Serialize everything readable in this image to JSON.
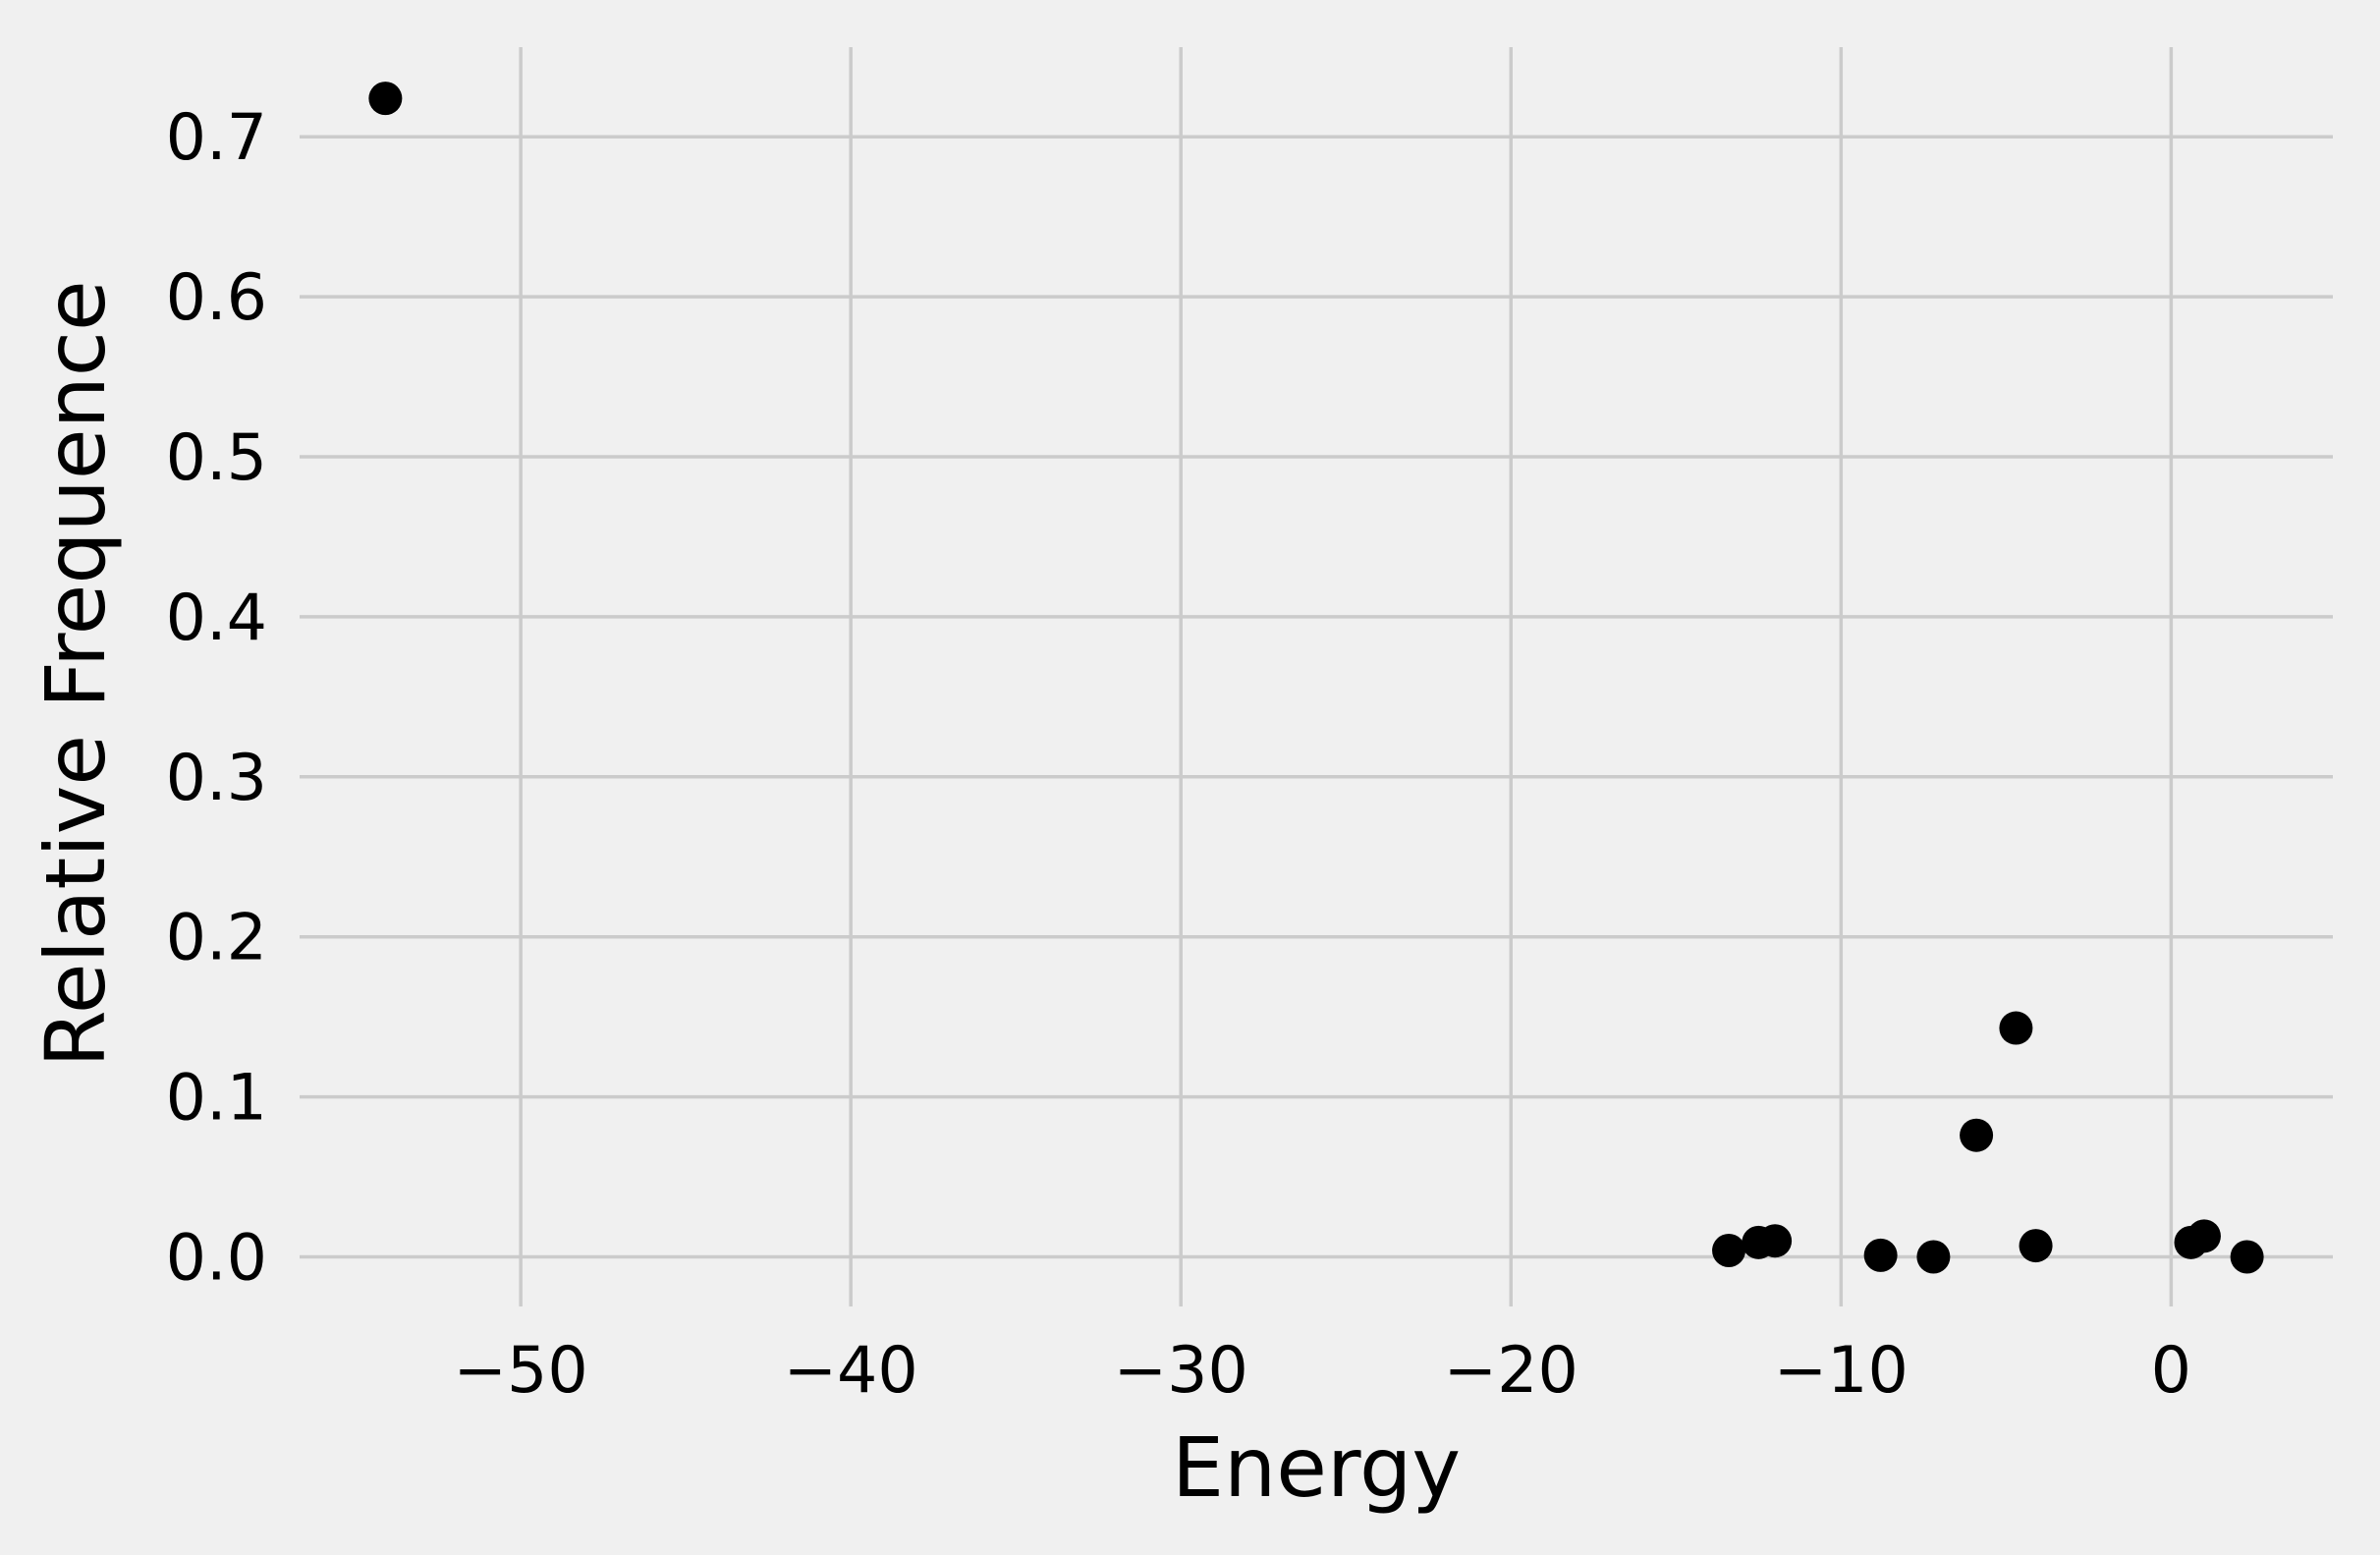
{
  "chart_data": {
    "type": "scatter",
    "title": "",
    "xlabel": "Energy",
    "ylabel": "Relative Frequence",
    "xlim": [
      -56.7,
      4.9
    ],
    "ylim": [
      -0.031,
      0.756
    ],
    "xticks": [
      -50,
      -40,
      -30,
      -20,
      -10,
      0
    ],
    "xtick_labels": [
      "−50",
      "−40",
      "−30",
      "−20",
      "−10",
      "0"
    ],
    "yticks": [
      0.0,
      0.1,
      0.2,
      0.3,
      0.4,
      0.5,
      0.6,
      0.7
    ],
    "ytick_labels": [
      "0.0",
      "0.1",
      "0.2",
      "0.3",
      "0.4",
      "0.5",
      "0.6",
      "0.7"
    ],
    "grid": true,
    "legend": "none",
    "colors": {
      "background": "#f0f0f0",
      "grid": "#cbcbcb",
      "marker": "#000000"
    },
    "series": [
      {
        "x": [
          -54.1,
          -13.4,
          -12.5,
          -12.0,
          -8.8,
          -7.2,
          -5.9,
          -4.7,
          -4.1,
          0.6,
          1.0,
          2.3
        ],
        "y": [
          0.724,
          0.004,
          0.009,
          0.01,
          0.001,
          0.0,
          0.076,
          0.143,
          0.007,
          0.009,
          0.013,
          0.0
        ]
      }
    ]
  }
}
